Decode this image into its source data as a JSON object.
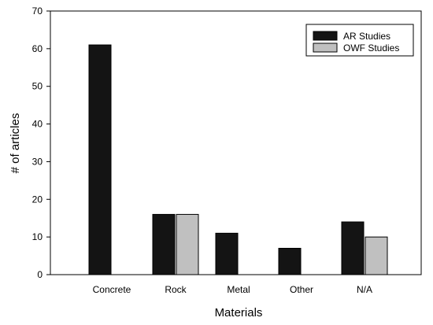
{
  "chart_data": {
    "type": "bar",
    "title": "",
    "xlabel": "Materials",
    "ylabel": "# of articles",
    "ylim": [
      0,
      70
    ],
    "yticks": [
      0,
      10,
      20,
      30,
      40,
      50,
      60,
      70
    ],
    "categories": [
      "Concrete",
      "Rock",
      "Metal",
      "Other",
      "N/A"
    ],
    "series": [
      {
        "name": "AR Studies",
        "values": [
          61,
          16,
          11,
          7,
          14
        ],
        "color": "#141414"
      },
      {
        "name": "OWF Studies",
        "values": [
          0,
          16,
          0,
          0,
          10
        ],
        "color": "#c0c0c0"
      }
    ],
    "legend_position": "top-right",
    "grid": false
  }
}
